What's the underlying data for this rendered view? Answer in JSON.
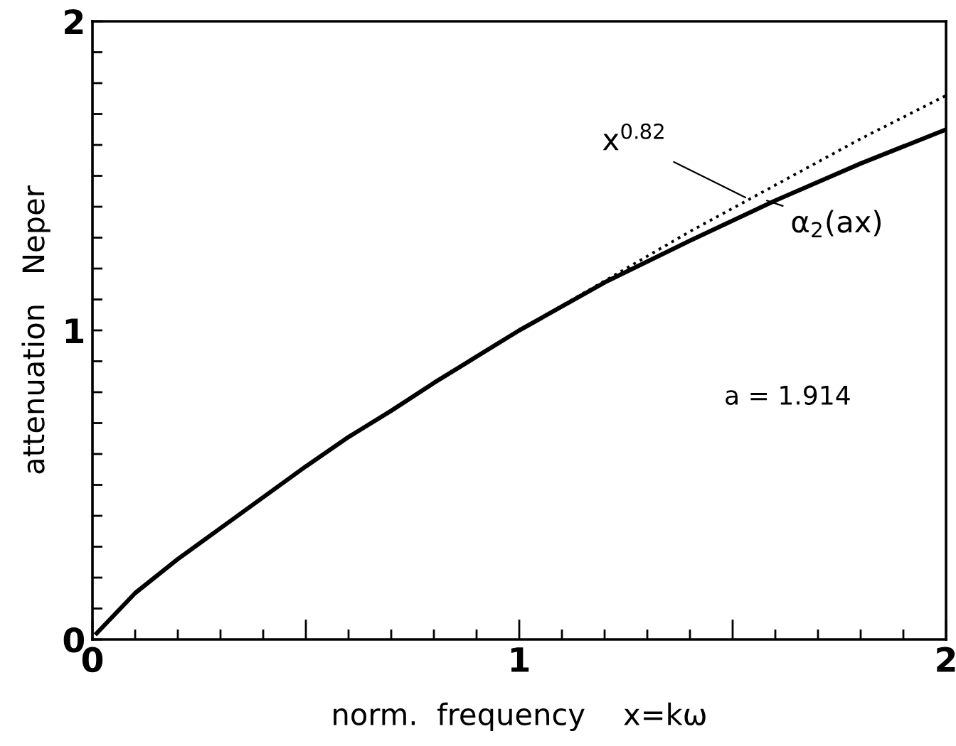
{
  "chart_data": {
    "type": "line",
    "xlabel": "norm.  frequency    x=kω",
    "ylabel": "attenuation   Neper",
    "xlim": [
      0,
      2
    ],
    "ylim": [
      0,
      2
    ],
    "xticks": [
      0,
      {
        "value": 0.1,
        "label": null
      },
      {
        "value": 0.2,
        "label": null
      },
      {
        "value": 0.3,
        "label": null
      },
      {
        "value": 0.4,
        "label": null
      },
      {
        "value": 0.5,
        "label": null
      },
      {
        "value": 0.6,
        "label": null
      },
      {
        "value": 0.7,
        "label": null
      },
      {
        "value": 0.8,
        "label": null
      },
      {
        "value": 0.9,
        "label": null
      },
      1,
      {
        "value": 1.1,
        "label": null
      },
      {
        "value": 1.2,
        "label": null
      },
      {
        "value": 1.3,
        "label": null
      },
      {
        "value": 1.4,
        "label": null
      },
      {
        "value": 1.5,
        "label": null
      },
      {
        "value": 1.6,
        "label": null
      },
      {
        "value": 1.7,
        "label": null
      },
      {
        "value": 1.8,
        "label": null
      },
      {
        "value": 1.9,
        "label": null
      },
      2
    ],
    "yticks": [
      0,
      {
        "value": 0.1,
        "label": null
      },
      {
        "value": 0.2,
        "label": null
      },
      {
        "value": 0.3,
        "label": null
      },
      {
        "value": 0.4,
        "label": null
      },
      {
        "value": 0.5,
        "label": null
      },
      {
        "value": 0.6,
        "label": null
      },
      {
        "value": 0.7,
        "label": null
      },
      {
        "value": 0.8,
        "label": null
      },
      {
        "value": 0.9,
        "label": null
      },
      1,
      {
        "value": 1.1,
        "label": null
      },
      {
        "value": 1.2,
        "label": null
      },
      {
        "value": 1.3,
        "label": null
      },
      {
        "value": 1.4,
        "label": null
      },
      {
        "value": 1.5,
        "label": null
      },
      {
        "value": 1.6,
        "label": null
      },
      {
        "value": 1.7,
        "label": null
      },
      {
        "value": 1.8,
        "label": null
      },
      {
        "value": 1.9,
        "label": null
      },
      2
    ],
    "grid": false,
    "legend": false,
    "marker": "none",
    "series": [
      {
        "color": "#000000",
        "line_style": "solid",
        "x": [
          0.01,
          0.1,
          0.2,
          0.3,
          0.4,
          0.5,
          0.6,
          0.7,
          0.8,
          0.9,
          1.0,
          1.2,
          1.4,
          1.6,
          1.8,
          2.0
        ],
        "values": [
          0.02,
          0.15,
          0.26,
          0.36,
          0.46,
          0.56,
          0.655,
          0.74,
          0.83,
          0.915,
          1.0,
          1.155,
          1.29,
          1.42,
          1.54,
          1.65
        ]
      },
      {
        "color": "#000000",
        "line_style": "dotted",
        "x": [
          1.0,
          1.2,
          1.4,
          1.6,
          1.8,
          2.0
        ],
        "values": [
          1.0,
          1.16,
          1.32,
          1.47,
          1.62,
          1.76
        ]
      }
    ],
    "annotations": [
      {
        "text": "x$^{0.82}$",
        "x": 1.53,
        "y": 1.43
      },
      {
        "text": "α$_{2}$(ax)",
        "x": 1.58,
        "y": 1.42
      },
      "a = 1.914"
    ]
  }
}
